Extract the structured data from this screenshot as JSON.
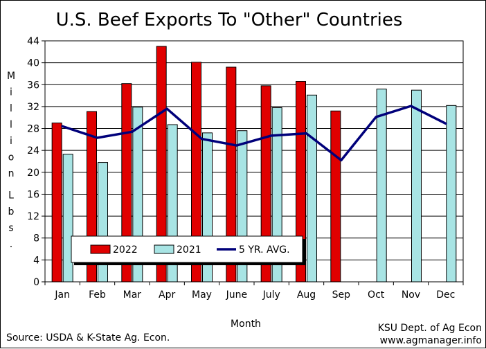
{
  "chart_data": {
    "type": "bar",
    "title": "U.S. Beef Exports To \"Other\" Countries",
    "xlabel": "Month",
    "ylabel": "Million Lbs.",
    "ylim": [
      0,
      44
    ],
    "yticks": [
      0,
      4,
      8,
      12,
      16,
      20,
      24,
      28,
      32,
      36,
      40,
      44
    ],
    "grid": true,
    "legend_position": "bottom-left",
    "categories": [
      "Jan",
      "Feb",
      "Mar",
      "Apr",
      "May",
      "June",
      "July",
      "Aug",
      "Sep",
      "Oct",
      "Nov",
      "Dec"
    ],
    "series": [
      {
        "name": "2022",
        "kind": "bar",
        "color": "#e00000",
        "values": [
          29.0,
          31.1,
          36.2,
          43.0,
          40.1,
          39.2,
          35.8,
          36.6,
          31.2,
          null,
          null,
          null
        ]
      },
      {
        "name": "2021",
        "kind": "bar",
        "color": "#a8e4e4",
        "values": [
          23.3,
          21.8,
          31.9,
          28.7,
          27.2,
          27.6,
          31.8,
          34.1,
          null,
          35.2,
          35.0,
          32.2
        ]
      },
      {
        "name": "5 YR. AVG.",
        "kind": "line",
        "color": "#00007a",
        "values": [
          28.4,
          26.3,
          27.4,
          31.6,
          26.1,
          24.9,
          26.7,
          27.1,
          22.2,
          30.1,
          32.1,
          28.9
        ]
      }
    ]
  },
  "footer": {
    "source": "Source:  USDA & K-State Ag. Econ.",
    "credit_line1": "KSU Dept. of Ag Econ",
    "credit_line2": "www.agmanager.info"
  }
}
